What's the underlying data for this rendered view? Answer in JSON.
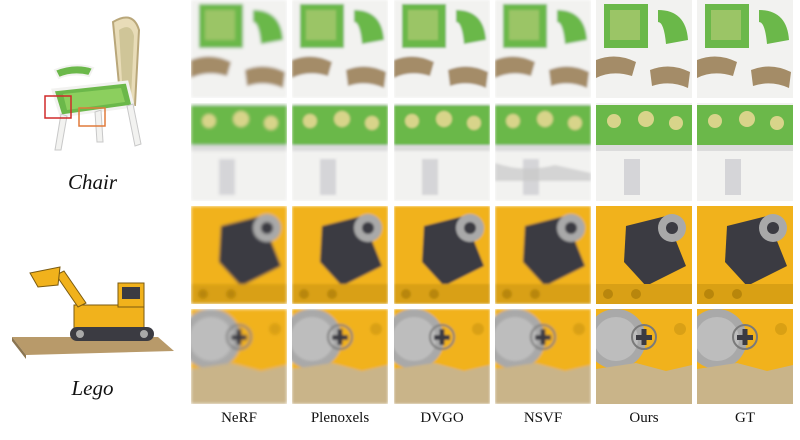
{
  "scenes": [
    {
      "id": "chair",
      "label": "Chair"
    },
    {
      "id": "lego",
      "label": "Lego"
    }
  ],
  "methods": [
    "NeRF",
    "Plenoxels",
    "DVGO",
    "NSVF",
    "Ours",
    "GT"
  ],
  "colors": {
    "chair_green": "#6bb84a",
    "chair_pattern": "#d8d48a",
    "chair_white": "#f2f2f0",
    "chair_gold": "#8a6a3a",
    "lego_yellow": "#f1b21c",
    "lego_dark": "#3b3b42",
    "lego_gray": "#a9a9a9",
    "highlight_red": "#d02a2a",
    "highlight_orange": "#e07a3a"
  }
}
